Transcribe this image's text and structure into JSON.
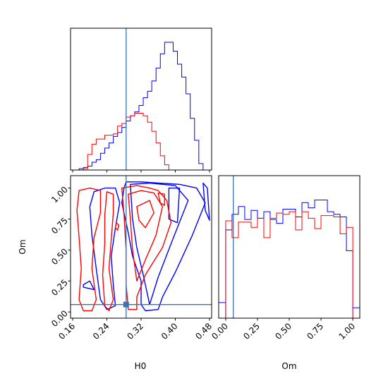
{
  "chart_data": {
    "type": "corner",
    "parameters": [
      "H0",
      "Om"
    ],
    "truths": {
      "H0": 0.285,
      "Om": 0.06
    },
    "colors": {
      "series_a": "#0000ff",
      "series_b": "#ff0000",
      "truth": "#3b75af",
      "axes": "#000000"
    },
    "panels": [
      {
        "id": "hist-h0",
        "type": "step-histogram",
        "xlim": [
          0.155,
          0.485
        ],
        "y_ticklabels": "none",
        "x_ticklabels": "none",
        "bin_edges": [
          0.165,
          0.175,
          0.185,
          0.195,
          0.205,
          0.215,
          0.225,
          0.235,
          0.245,
          0.255,
          0.265,
          0.275,
          0.285,
          0.295,
          0.305,
          0.315,
          0.325,
          0.335,
          0.345,
          0.355,
          0.365,
          0.375,
          0.385,
          0.395,
          0.405,
          0.415,
          0.425,
          0.435,
          0.445,
          0.455,
          0.465,
          0.475
        ],
        "series": [
          {
            "color": "blue",
            "values": [
              0,
              0.01,
              0.02,
              0.03,
              0.06,
              0.08,
              0.13,
              0.17,
              0.21,
              0.26,
              0.29,
              0.33,
              0.38,
              0.42,
              0.45,
              0.5,
              0.56,
              0.61,
              0.69,
              0.79,
              0.9,
              0.99,
              0.99,
              0.92,
              0.82,
              0.72,
              0.59,
              0.4,
              0.23,
              0.05,
              0.0
            ]
          },
          {
            "color": "red",
            "values": [
              0,
              0,
              0.01,
              0.12,
              0.2,
              0.24,
              0.24,
              0.27,
              0.27,
              0.28,
              0.34,
              0.36,
              0.41,
              0.42,
              0.44,
              0.44,
              0.42,
              0.37,
              0.3,
              0.21,
              0.11,
              0.04,
              0,
              0,
              0,
              0,
              0,
              0,
              0,
              0,
              0
            ]
          }
        ]
      },
      {
        "id": "contour-h0-om",
        "type": "contour",
        "xlim": [
          0.155,
          0.485
        ],
        "ylim": [
          -0.05,
          1.1
        ],
        "x_ticks": [
          0.16,
          0.24,
          0.32,
          0.4,
          0.48
        ],
        "x_ticklabels": "none",
        "y_ticks": [
          0.0,
          0.25,
          0.5,
          0.75,
          1.0
        ],
        "y_ticklabels": [
          "0.00",
          "0.25",
          "0.50",
          "0.75",
          "1.00"
        ],
        "ylabel": "Om",
        "series": [
          {
            "color": "blue",
            "contours": [
              [
                [
                  0.285,
                  1.05
                ],
                [
                  0.32,
                  1.05
                ],
                [
                  0.36,
                  1.04
                ],
                [
                  0.41,
                  1.03
                ],
                [
                  0.45,
                  1.0
                ],
                [
                  0.47,
                  0.88
                ],
                [
                  0.44,
                  0.62
                ],
                [
                  0.4,
                  0.32
                ],
                [
                  0.37,
                  0.12
                ],
                [
                  0.36,
                  0.02
                ],
                [
                  0.33,
                  0.01
                ],
                [
                  0.32,
                  0.06
                ],
                [
                  0.32,
                  0.25
                ],
                [
                  0.3,
                  0.45
                ],
                [
                  0.29,
                  0.64
                ],
                [
                  0.275,
                  0.88
                ],
                [
                  0.28,
                  1.0
                ]
              ],
              [
                [
                  0.21,
                  0.97
                ],
                [
                  0.235,
                  1.0
                ],
                [
                  0.26,
                  1.0
                ],
                [
                  0.27,
                  0.88
                ],
                [
                  0.26,
                  0.68
                ],
                [
                  0.25,
                  0.45
                ],
                [
                  0.255,
                  0.22
                ],
                [
                  0.26,
                  0.05
                ],
                [
                  0.24,
                  0.02
                ],
                [
                  0.225,
                  0.1
                ],
                [
                  0.215,
                  0.35
                ],
                [
                  0.205,
                  0.62
                ],
                [
                  0.2,
                  0.85
                ]
              ],
              [
                [
                  0.295,
                  1.03
                ],
                [
                  0.34,
                  1.04
                ],
                [
                  0.4,
                  1.02
                ],
                [
                  0.43,
                  0.9
                ],
                [
                  0.39,
                  0.55
                ],
                [
                  0.36,
                  0.28
                ],
                [
                  0.34,
                  0.06
                ],
                [
                  0.325,
                  0.3
                ],
                [
                  0.31,
                  0.52
                ],
                [
                  0.3,
                  0.75
                ]
              ],
              [
                [
                  0.385,
                  1.0
                ],
                [
                  0.41,
                  1.0
                ],
                [
                  0.405,
                  0.72
                ],
                [
                  0.385,
                  0.75
                ]
              ],
              [
                [
                  0.465,
                  1.04
                ],
                [
                  0.475,
                  1.0
                ],
                [
                  0.48,
                  0.74
                ],
                [
                  0.47,
                  0.82
                ]
              ],
              [
                [
                  0.185,
                  0.2
                ],
                [
                  0.21,
                  0.18
                ],
                [
                  0.2,
                  0.25
                ],
                [
                  0.185,
                  0.22
                ]
              ]
            ]
          },
          {
            "color": "red",
            "contours": [
              [
                [
                  0.175,
                  0.98
                ],
                [
                  0.2,
                  1.0
                ],
                [
                  0.225,
                  0.98
                ],
                [
                  0.225,
                  0.8
                ],
                [
                  0.21,
                  0.6
                ],
                [
                  0.205,
                  0.35
                ],
                [
                  0.215,
                  0.1
                ],
                [
                  0.205,
                  0.01
                ],
                [
                  0.185,
                  0.01
                ],
                [
                  0.175,
                  0.1
                ],
                [
                  0.18,
                  0.35
                ],
                [
                  0.175,
                  0.6
                ],
                [
                  0.17,
                  0.82
                ]
              ],
              [
                [
                  0.24,
                  0.97
                ],
                [
                  0.255,
                  0.95
                ],
                [
                  0.255,
                  0.8
                ],
                [
                  0.25,
                  0.58
                ],
                [
                  0.245,
                  0.35
                ],
                [
                  0.255,
                  0.1
                ],
                [
                  0.245,
                  0.01
                ],
                [
                  0.235,
                  0.05
                ],
                [
                  0.23,
                  0.3
                ],
                [
                  0.235,
                  0.55
                ],
                [
                  0.235,
                  0.78
                ]
              ],
              [
                [
                  0.275,
                  1.0
                ],
                [
                  0.31,
                  1.02
                ],
                [
                  0.34,
                  1.0
                ],
                [
                  0.36,
                  0.98
                ],
                [
                  0.38,
                  0.9
                ],
                [
                  0.39,
                  0.72
                ],
                [
                  0.37,
                  0.52
                ],
                [
                  0.33,
                  0.3
                ],
                [
                  0.31,
                  0.12
                ],
                [
                  0.31,
                  0.02
                ],
                [
                  0.29,
                  0.02
                ],
                [
                  0.285,
                  0.22
                ],
                [
                  0.285,
                  0.5
                ],
                [
                  0.28,
                  0.78
                ]
              ],
              [
                [
                  0.29,
                  0.95
                ],
                [
                  0.32,
                  0.98
                ],
                [
                  0.35,
                  0.96
                ],
                [
                  0.37,
                  0.85
                ],
                [
                  0.355,
                  0.62
                ],
                [
                  0.33,
                  0.42
                ],
                [
                  0.31,
                  0.25
                ],
                [
                  0.3,
                  0.5
                ],
                [
                  0.295,
                  0.75
                ]
              ],
              [
                [
                  0.31,
                  0.85
                ],
                [
                  0.34,
                  0.9
                ],
                [
                  0.35,
                  0.8
                ],
                [
                  0.33,
                  0.68
                ],
                [
                  0.315,
                  0.74
                ]
              ],
              [
                [
                  0.36,
                  0.96
                ],
                [
                  0.375,
                  0.95
                ],
                [
                  0.375,
                  0.86
                ],
                [
                  0.365,
                  0.88
                ]
              ],
              [
                [
                  0.262,
                  0.72
                ],
                [
                  0.268,
                  0.7
                ],
                [
                  0.265,
                  0.66
                ],
                [
                  0.26,
                  0.68
                ]
              ]
            ]
          }
        ]
      },
      {
        "id": "hist-om",
        "type": "step-histogram",
        "xlim": [
          -0.055,
          1.055
        ],
        "y_ticklabels": "none",
        "x_ticks": [
          0.0,
          0.25,
          0.5,
          0.75,
          1.0
        ],
        "x_ticklabels": [
          "0.00",
          "0.25",
          "0.50",
          "0.75",
          "1.00"
        ],
        "bin_edges": [
          0.0,
          0.05,
          0.1,
          0.15,
          0.2,
          0.25,
          0.3,
          0.35,
          0.4,
          0.45,
          0.5,
          0.55,
          0.6,
          0.65,
          0.7,
          0.75,
          0.8,
          0.85,
          0.9,
          0.95,
          1.0
        ],
        "series": [
          {
            "color": "blue",
            "values": [
              0.68,
              0.8,
              0.86,
              0.76,
              0.83,
              0.77,
              0.82,
              0.76,
              0.73,
              0.84,
              0.84,
              0.78,
              0.89,
              0.85,
              0.91,
              0.91,
              0.82,
              0.8,
              0.78,
              0.52
            ]
          },
          {
            "color": "red",
            "values": [
              0.75,
              0.62,
              0.74,
              0.74,
              0.7,
              0.77,
              0.62,
              0.77,
              0.81,
              0.8,
              0.82,
              0.68,
              0.82,
              0.77,
              0.69,
              0.79,
              0.79,
              0.78,
              0.65,
              0.7
            ]
          }
        ],
        "outer_ends": {
          "left_x": -0.055,
          "left_value": 0.12,
          "right_x": 1.055,
          "right_value": 0.08
        }
      }
    ],
    "xlabels": [
      "H0",
      "Om"
    ],
    "bottom_x_ticks_h0": [
      0.16,
      0.24,
      0.32,
      0.4,
      0.48
    ],
    "bottom_x_ticklabels_h0": [
      "0.16",
      "0.24",
      "0.32",
      "0.40",
      "0.48"
    ]
  }
}
